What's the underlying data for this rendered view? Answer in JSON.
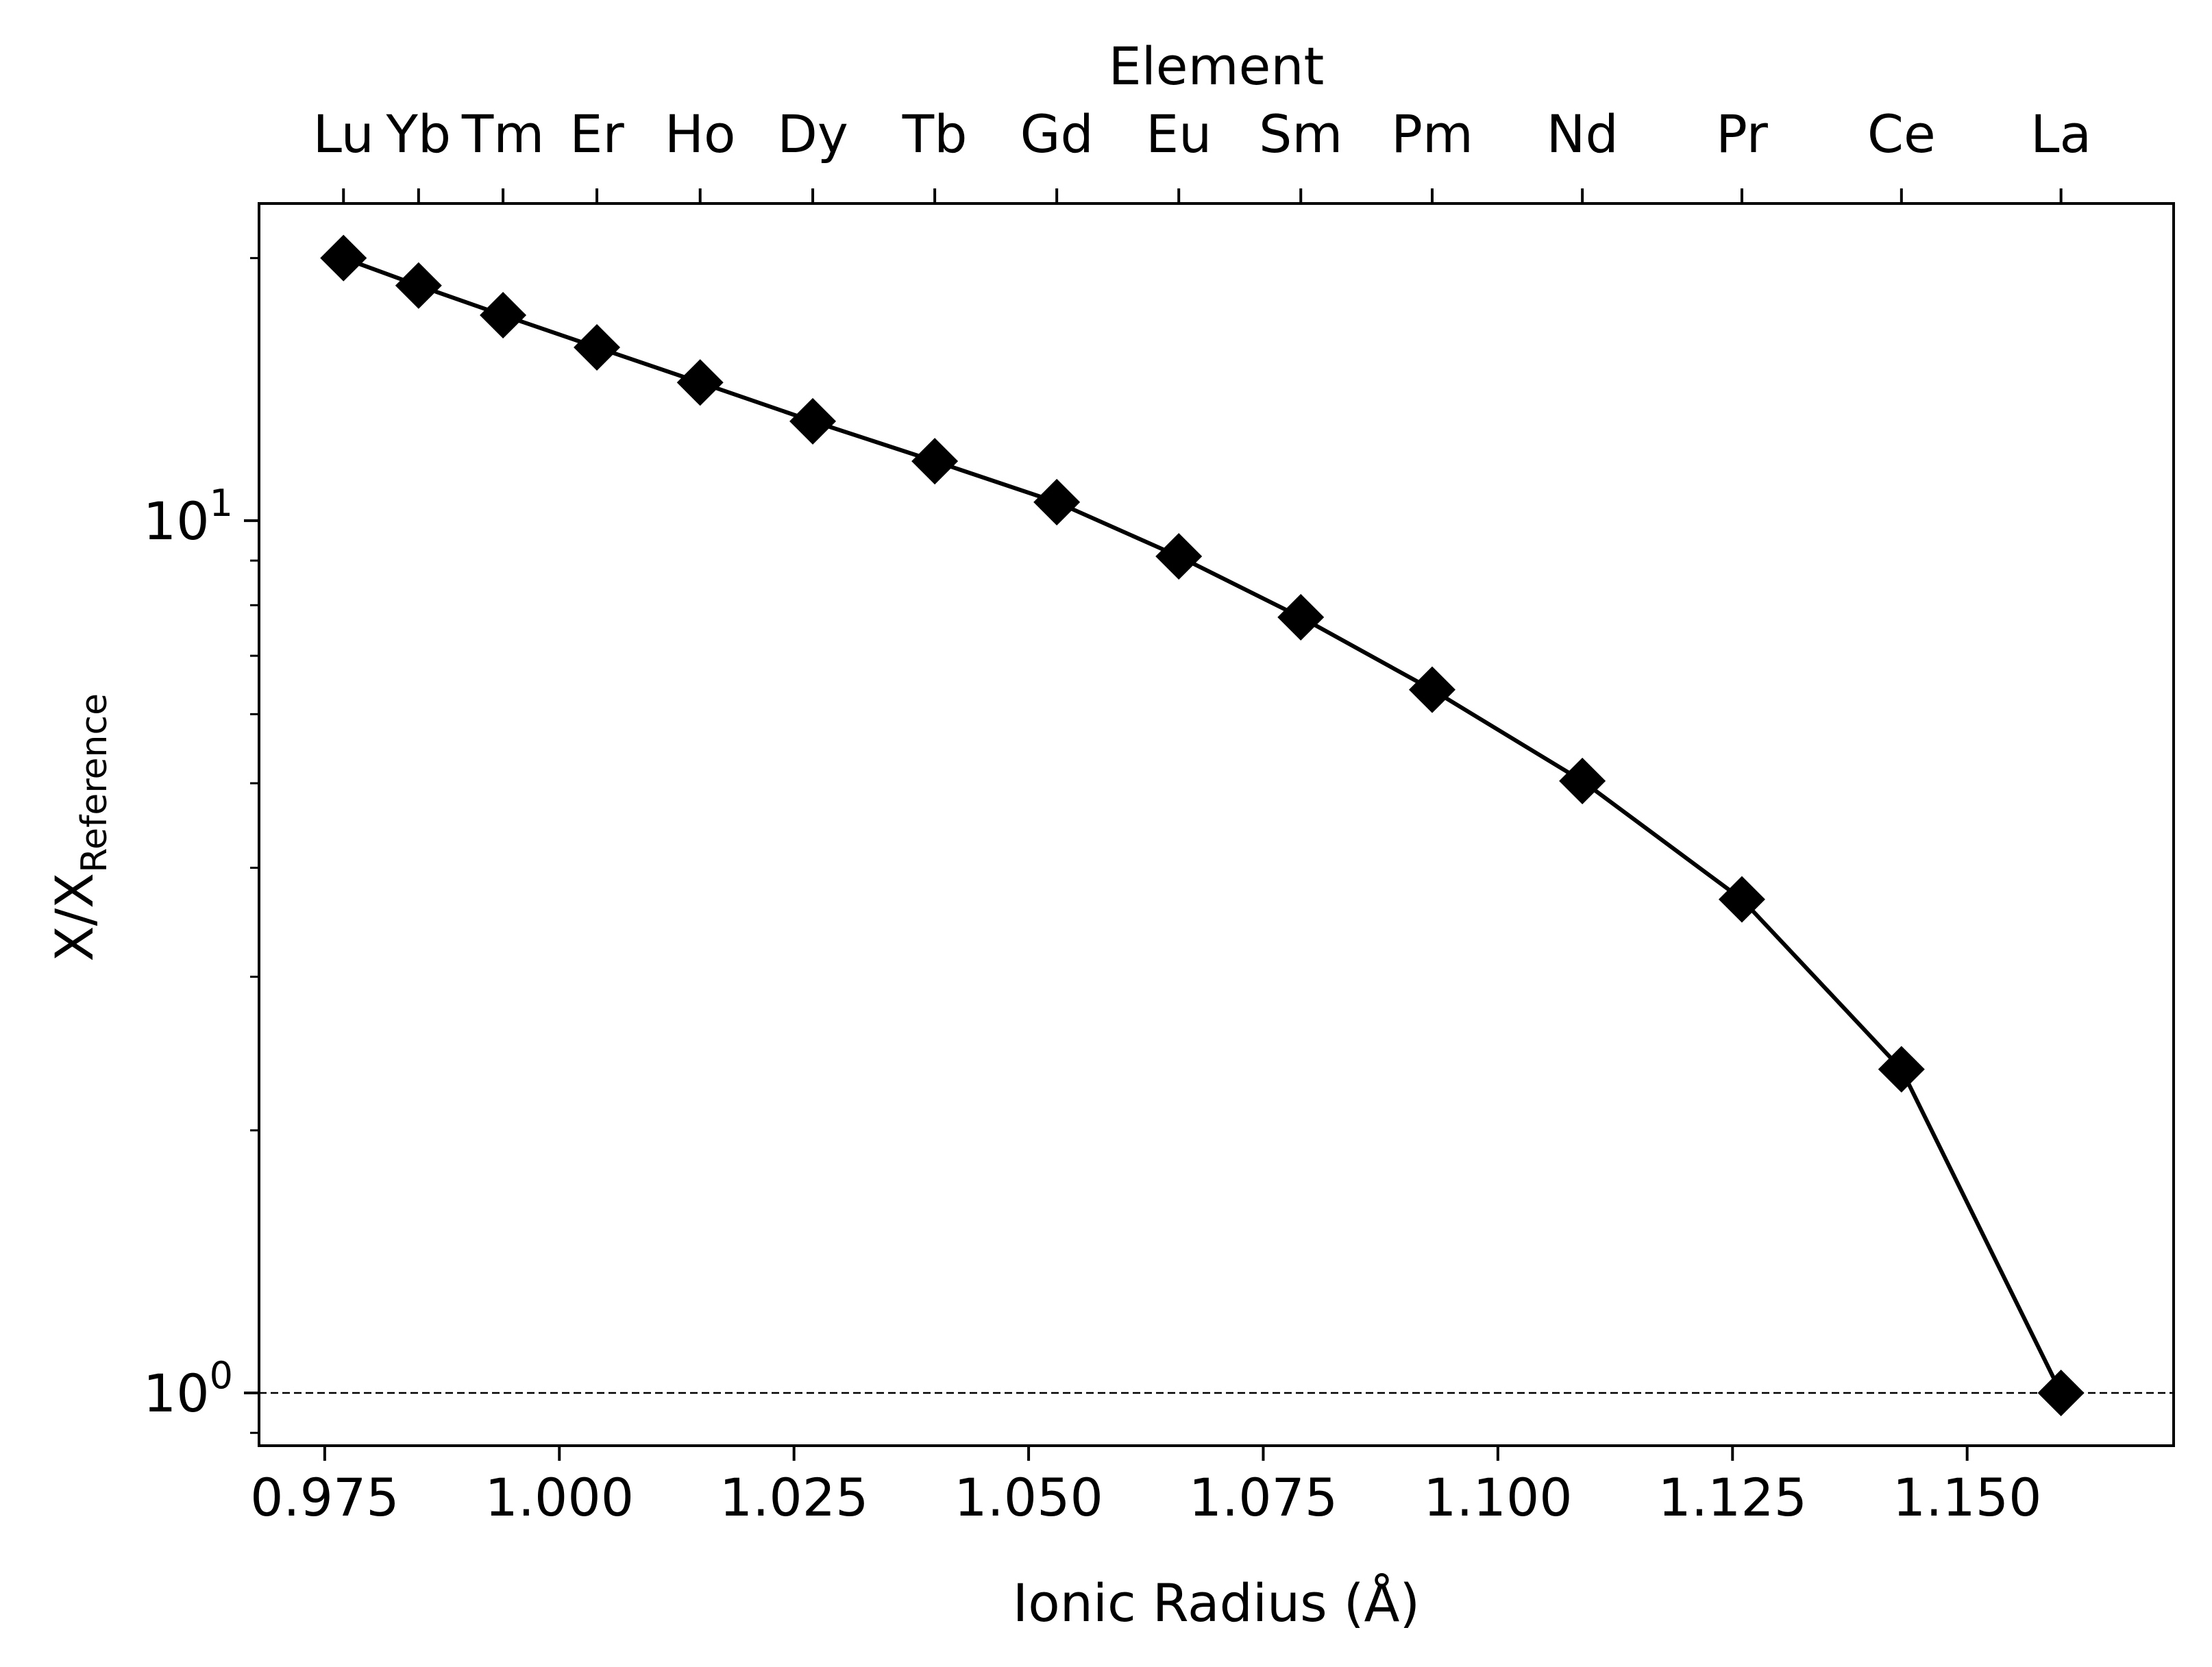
{
  "chart_data": {
    "type": "line",
    "title": "",
    "xlabel": "Ionic Radius (Å)",
    "ylabel": "X/X",
    "ylabel_subscript": "Reference",
    "top_axis_label": "Element",
    "xlim": [
      0.968,
      1.172
    ],
    "ylim": [
      0.87,
      23.1
    ],
    "yscale": "log",
    "grid": false,
    "legend": "none",
    "x_ticks": [
      {
        "value": 0.975,
        "label": "0.975"
      },
      {
        "value": 1.0,
        "label": "1.000"
      },
      {
        "value": 1.025,
        "label": "1.025"
      },
      {
        "value": 1.05,
        "label": "1.050"
      },
      {
        "value": 1.075,
        "label": "1.075"
      },
      {
        "value": 1.1,
        "label": "1.100"
      },
      {
        "value": 1.125,
        "label": "1.125"
      },
      {
        "value": 1.15,
        "label": "1.150"
      }
    ],
    "y_ticks": [
      {
        "value": 1,
        "base": "10",
        "exp": "0"
      },
      {
        "value": 10,
        "base": "10",
        "exp": "1"
      }
    ],
    "y_minor_ticks": [
      0.9,
      2,
      3,
      4,
      5,
      6,
      7,
      8,
      9,
      20
    ],
    "reference_line": {
      "y": 1,
      "style": "dashed"
    },
    "series": [
      {
        "color": "#000000",
        "marker": "diamond",
        "points": [
          {
            "element": "Lu",
            "x": 0.977,
            "y": 20.0
          },
          {
            "element": "Yb",
            "x": 0.985,
            "y": 18.6
          },
          {
            "element": "Tm",
            "x": 0.994,
            "y": 17.2
          },
          {
            "element": "Er",
            "x": 1.004,
            "y": 15.8
          },
          {
            "element": "Ho",
            "x": 1.015,
            "y": 14.4
          },
          {
            "element": "Dy",
            "x": 1.027,
            "y": 13.0
          },
          {
            "element": "Tb",
            "x": 1.04,
            "y": 11.7
          },
          {
            "element": "Gd",
            "x": 1.053,
            "y": 10.5
          },
          {
            "element": "Eu",
            "x": 1.066,
            "y": 9.1
          },
          {
            "element": "Sm",
            "x": 1.079,
            "y": 7.75
          },
          {
            "element": "Pm",
            "x": 1.093,
            "y": 6.4
          },
          {
            "element": "Nd",
            "x": 1.109,
            "y": 5.03
          },
          {
            "element": "Pr",
            "x": 1.126,
            "y": 3.68
          },
          {
            "element": "Ce",
            "x": 1.143,
            "y": 2.35
          },
          {
            "element": "La",
            "x": 1.16,
            "y": 1.0
          }
        ]
      }
    ]
  }
}
